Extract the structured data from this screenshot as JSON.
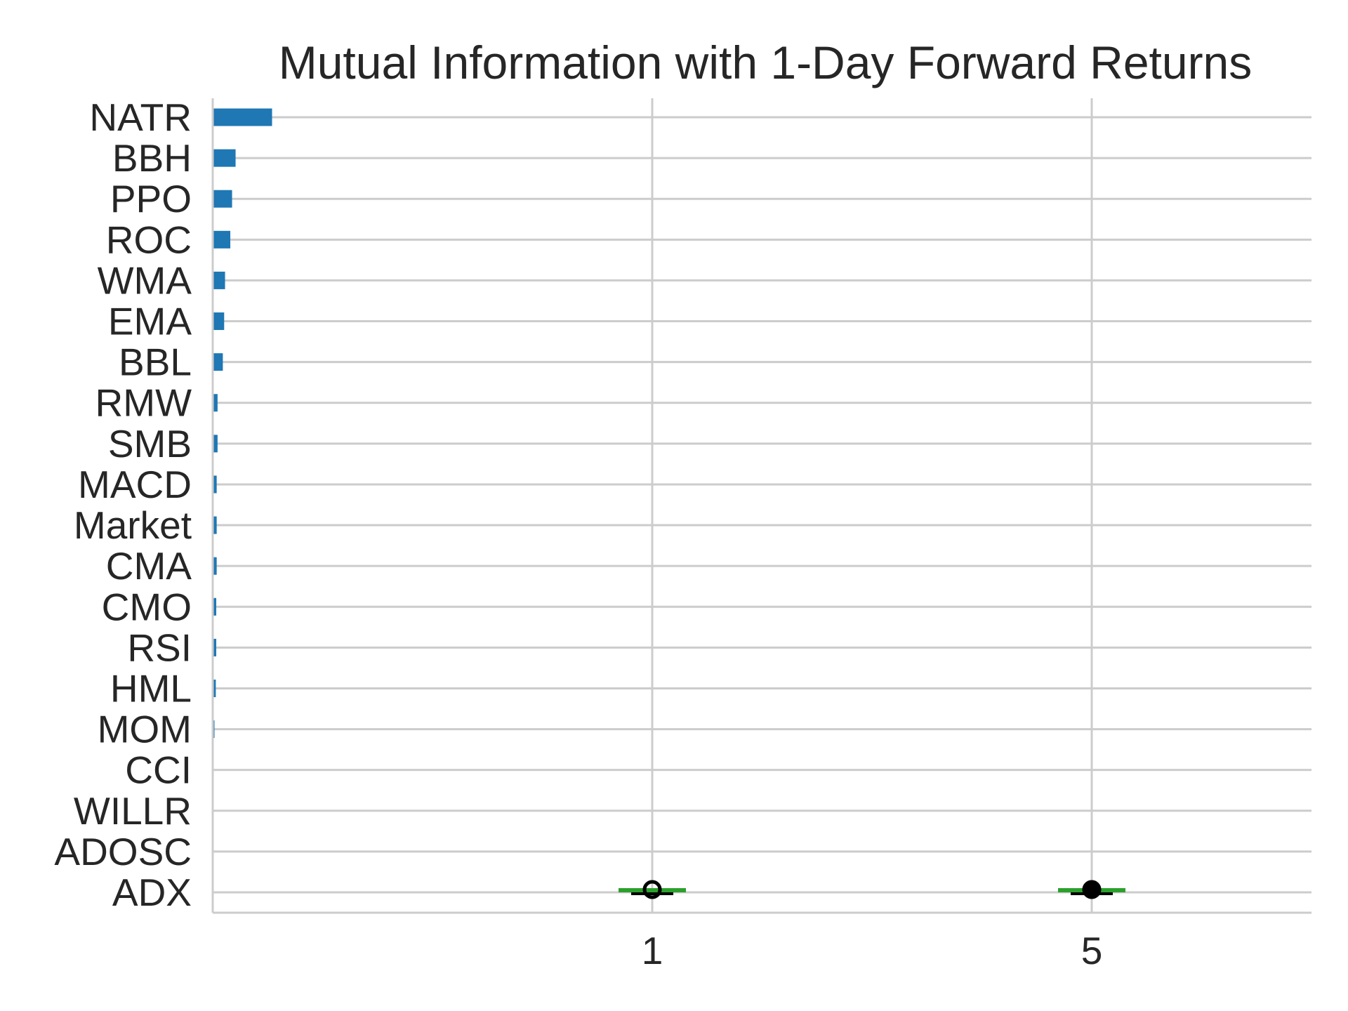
{
  "chart_data": {
    "type": "bar",
    "orientation": "horizontal",
    "title": "Mutual Information with 1-Day Forward Returns",
    "xlabel": "",
    "ylabel": "",
    "categories": [
      "NATR",
      "BBH",
      "PPO",
      "ROC",
      "WMA",
      "EMA",
      "BBL",
      "RMW",
      "SMB",
      "MACD",
      "Market",
      "CMA",
      "CMO",
      "RSI",
      "HML",
      "MOM",
      "CCI",
      "WILLR",
      "ADOSC",
      "ADX"
    ],
    "values": [
      0.0135,
      0.0052,
      0.0044,
      0.004,
      0.0028,
      0.0026,
      0.0023,
      0.0011,
      0.0011,
      0.0009,
      0.0009,
      0.0009,
      0.0008,
      0.0008,
      0.0007,
      0.0004,
      0.0,
      0.0,
      0.0,
      0.0
    ],
    "bar_color": "#1f77b4",
    "xlim": [
      0,
      0.25
    ],
    "grid": true,
    "overlay_boxplot": {
      "tick_labels": [
        "1",
        "5"
      ],
      "tick_positions": [
        0.1,
        0.2
      ],
      "median_color": "#2ca02c",
      "flier_color": "#000000"
    }
  }
}
